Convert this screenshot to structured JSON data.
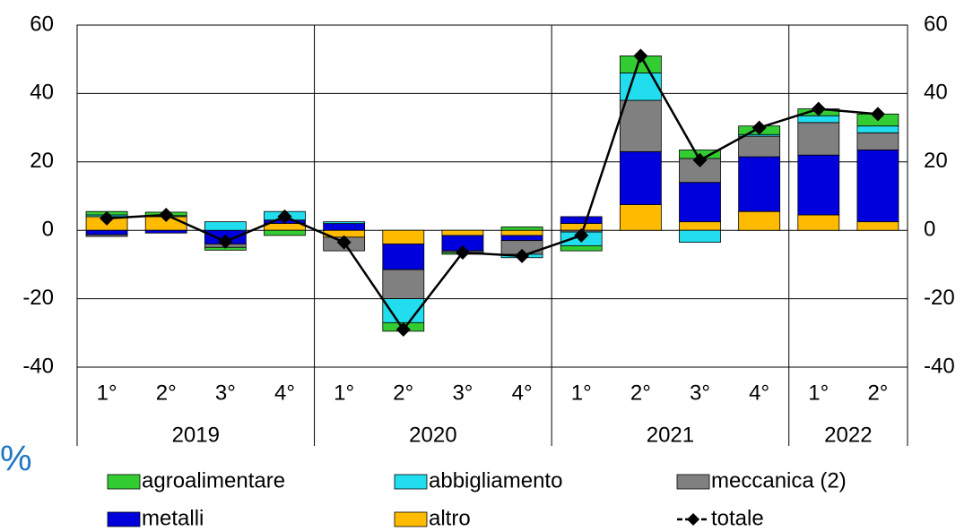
{
  "chart_data": {
    "type": "stacked-bar-line",
    "ylabel": "%",
    "groups": [
      {
        "name": "2019",
        "categories": [
          "1°",
          "2°",
          "3°",
          "4°"
        ]
      },
      {
        "name": "2020",
        "categories": [
          "1°",
          "2°",
          "3°",
          "4°"
        ]
      },
      {
        "name": "2021",
        "categories": [
          "1°",
          "2°",
          "3°",
          "4°"
        ]
      },
      {
        "name": "2022",
        "categories": [
          "1°",
          "2°"
        ]
      }
    ],
    "ylim": [
      -40,
      60
    ],
    "yticks": [
      -40,
      -20,
      0,
      20,
      40,
      60
    ],
    "y2lim": [
      -40,
      60
    ],
    "y2ticks": [
      -40,
      -20,
      0,
      20,
      40,
      60
    ],
    "grid": true,
    "series": [
      {
        "name": "agroalimentare",
        "color": "#33cc33",
        "values": [
          1,
          1,
          -0.8,
          -1.5,
          0,
          -2.5,
          -0.5,
          1,
          -1.5,
          5,
          2.5,
          2.5,
          2,
          3.5
        ]
      },
      {
        "name": "abbigliamento",
        "color": "#22ddee",
        "values": [
          0.5,
          0.3,
          2.5,
          2.5,
          0.5,
          -7,
          0,
          -1,
          -4,
          8,
          -3.5,
          0.5,
          2,
          2
        ]
      },
      {
        "name": "meccanica (2)",
        "color": "#808080",
        "values": [
          -0.5,
          0,
          -1,
          0,
          -4,
          -8.5,
          -0.5,
          -4,
          -0.5,
          15,
          7,
          6,
          9.5,
          5
        ]
      },
      {
        "name": "metalli",
        "color": "#0000dd",
        "values": [
          -1.3,
          -0.8,
          -4,
          1,
          2,
          -7.5,
          -4.5,
          -1.5,
          2,
          15.5,
          11.5,
          16,
          17.5,
          21
        ]
      },
      {
        "name": "altro",
        "color": "#ffbb00",
        "values": [
          4,
          4,
          0,
          2,
          -2,
          -4,
          -1.5,
          -1.5,
          2,
          7.5,
          2.5,
          5.5,
          4.5,
          2.5
        ]
      },
      {
        "name": "totale",
        "type": "line",
        "color": "#000000",
        "values": [
          3.5,
          4.5,
          -3.3,
          4,
          -3.5,
          -29,
          -6.5,
          -7.5,
          -1.5,
          51,
          20.5,
          30,
          35.5,
          34
        ]
      }
    ]
  }
}
